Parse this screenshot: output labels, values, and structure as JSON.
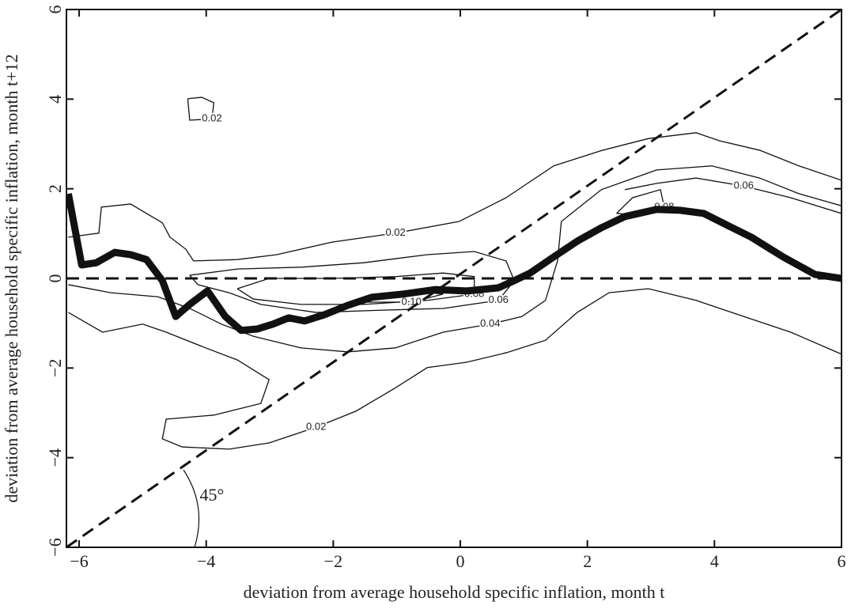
{
  "chart_data": {
    "type": "contour",
    "xlabel": "deviation from average household specific inflation, month t",
    "ylabel": "deviation from average household specific inflation, month t+12",
    "xlim": [
      -6.2,
      6
    ],
    "ylim": [
      -6,
      6
    ],
    "xticks": [
      {
        "value": -6,
        "label": "−6"
      },
      {
        "value": -4,
        "label": "−4"
      },
      {
        "value": -2,
        "label": "−2"
      },
      0,
      2,
      4,
      6
    ],
    "yticks": [
      {
        "value": -6,
        "label": "−6"
      },
      {
        "value": -4,
        "label": "−4"
      },
      {
        "value": -2,
        "label": "−2"
      },
      0,
      2,
      4,
      6
    ],
    "series": [
      {
        "color": "#111111",
        "x": [
          -6.17,
          -5.96,
          -5.73,
          -5.44,
          -5.19,
          -4.94,
          -4.69,
          -4.48,
          -4.26,
          -3.98,
          -3.7,
          -3.45,
          -3.2,
          -2.95,
          -2.7,
          -2.45,
          -2.14,
          -1.77,
          -1.39,
          -0.9,
          -0.4,
          0.1,
          0.6,
          0.85,
          1.1,
          1.47,
          1.84,
          2.22,
          2.59,
          3.09,
          3.46,
          3.83,
          4.21,
          4.58,
          5.08,
          5.58,
          6.0
        ],
        "y": [
          1.89,
          0.3,
          0.35,
          0.58,
          0.53,
          0.42,
          -0.05,
          -0.85,
          -0.58,
          -0.28,
          -0.85,
          -1.16,
          -1.13,
          -1.02,
          -0.88,
          -0.95,
          -0.81,
          -0.6,
          -0.42,
          -0.35,
          -0.25,
          -0.28,
          -0.21,
          -0.05,
          0.12,
          0.48,
          0.83,
          1.13,
          1.38,
          1.54,
          1.52,
          1.45,
          1.18,
          0.92,
          0.48,
          0.09,
          0.0
        ]
      }
    ],
    "reference_lines": [
      {
        "x": [
          -6.2,
          6
        ],
        "y": [
          0,
          0
        ]
      },
      {
        "x": [
          -6.2,
          6
        ],
        "y": [
          -6,
          6
        ]
      }
    ],
    "contours": [
      {
        "level": {
          "value": 0.02,
          "label": "0.02"
        },
        "x": [
          -6.17,
          -5.69,
          -5.65,
          -5.19,
          -4.69,
          -4.57,
          -4.32,
          -4.2,
          -3.51,
          -2.89,
          -2.02,
          -1.02,
          -0.02,
          0.72,
          1.47,
          2.24,
          2.96,
          3.71,
          4.08,
          4.71,
          5.33,
          6.0
        ],
        "y": [
          0.92,
          1.01,
          1.59,
          1.66,
          1.24,
          0.92,
          0.65,
          0.39,
          0.42,
          0.53,
          0.81,
          1.01,
          1.27,
          1.8,
          2.51,
          2.86,
          3.12,
          3.25,
          3.07,
          2.86,
          2.51,
          2.19
        ]
      },
      {
        "level": {
          "value": 0.02,
          "label": "0.02"
        },
        "x": [
          -6.17,
          -5.63,
          -5.0,
          -4.63,
          -4.01,
          -3.51,
          -3.01,
          -3.14,
          -3.88,
          -4.63,
          -4.69,
          -4.38,
          -3.64,
          -3.01,
          -2.27,
          -1.64,
          -1.02,
          -0.52,
          0.1,
          0.72,
          1.34,
          1.84,
          2.34,
          2.96,
          3.71,
          4.46,
          5.2,
          6.0
        ],
        "y": [
          -0.76,
          -1.2,
          -1.02,
          -1.2,
          -1.55,
          -1.82,
          -2.26,
          -2.79,
          -3.05,
          -3.14,
          -3.58,
          -3.76,
          -3.81,
          -3.67,
          -3.32,
          -2.96,
          -2.44,
          -1.99,
          -1.87,
          -1.66,
          -1.38,
          -0.76,
          -0.32,
          -0.23,
          -0.49,
          -0.85,
          -1.2,
          -1.69
        ]
      },
      {
        "level": {
          "value": 0.04,
          "label": "0.04"
        },
        "x": [
          -6.17,
          -5.5,
          -4.76,
          -4.26,
          -3.76,
          -3.26,
          -2.51,
          -1.77,
          -1.02,
          -0.27,
          0.47,
          0.97,
          1.34,
          1.53,
          1.59,
          2.22,
          3.09,
          3.96,
          4.71,
          5.33,
          6.0
        ],
        "y": [
          -0.14,
          -0.32,
          -0.41,
          -0.67,
          -1.02,
          -1.29,
          -1.55,
          -1.64,
          -1.55,
          -1.2,
          -1.02,
          -0.85,
          -0.49,
          0.39,
          1.27,
          1.98,
          2.42,
          2.51,
          2.24,
          1.89,
          1.62
        ]
      },
      {
        "level": {
          "value": 0.06,
          "label": "0.06"
        },
        "x": [
          -4.26,
          -3.51,
          -2.51,
          -1.52,
          -0.52,
          0.22,
          0.72,
          0.85,
          0.6,
          -0.27,
          -1.27,
          -2.27,
          -3.14,
          -3.64,
          -4.13,
          -4.26
        ],
        "y": [
          0.07,
          0.21,
          0.25,
          0.35,
          0.53,
          0.6,
          0.39,
          -0.05,
          -0.49,
          -0.67,
          -0.71,
          -0.76,
          -0.58,
          -0.32,
          -0.14,
          0.07
        ]
      },
      {
        "level": {
          "value": 0.08,
          "label": "0.08"
        },
        "x": [
          -3.51,
          -3.01,
          -2.02,
          -1.02,
          -0.27,
          0.22,
          0.22,
          -0.52,
          -1.52,
          -2.51,
          -3.26,
          -3.51
        ],
        "y": [
          -0.23,
          0.0,
          0.0,
          0.04,
          0.12,
          0.04,
          -0.35,
          -0.49,
          -0.58,
          -0.58,
          -0.46,
          -0.23
        ]
      },
      {
        "level": {
          "value": 0.1,
          "label": "0.10"
        },
        "x": [
          -1.52,
          -0.77,
          -0.27,
          -0.77,
          -1.52,
          -1.52
        ],
        "y": [
          -0.41,
          -0.28,
          -0.35,
          -0.53,
          -0.53,
          -0.41
        ]
      },
      {
        "level": {
          "value": 0.06,
          "label": "0.06"
        },
        "x": [
          2.59,
          3.09,
          3.71,
          4.46,
          5.2,
          6.0
        ],
        "y": [
          1.98,
          2.12,
          2.24,
          2.06,
          1.8,
          1.45
        ]
      },
      {
        "level": {
          "value": 0.08,
          "label": "0.08"
        },
        "x": [
          2.46,
          2.71,
          3.15,
          3.21,
          2.84,
          2.46
        ],
        "y": [
          1.45,
          1.8,
          1.98,
          1.59,
          1.41,
          1.45
        ]
      },
      {
        "level": {
          "value": 0.02,
          "label": "0.02"
        },
        "x": [
          -4.29,
          -4.07,
          -3.88,
          -3.91,
          -4.26,
          -4.29
        ],
        "y": [
          4.01,
          4.04,
          3.92,
          3.56,
          3.53,
          4.01
        ]
      }
    ],
    "annotations": [
      {
        "text": "45°",
        "x": -3.91,
        "y": -4.87
      }
    ]
  }
}
